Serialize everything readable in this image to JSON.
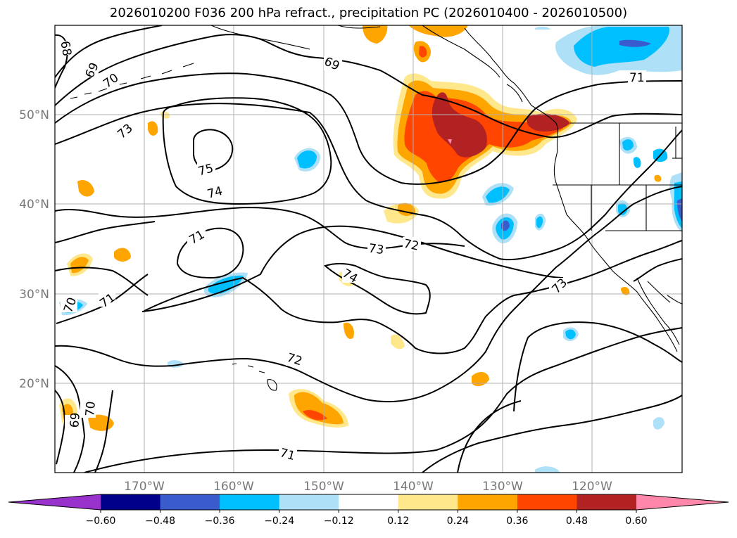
{
  "title": "2026010200 F036 200 hPa refract., precipitation PC (2026010400 - 2026010500)",
  "lat_labels": [
    "50°N",
    "40°N",
    "30°N",
    "20°N"
  ],
  "lon_labels": [
    "170°W",
    "160°W",
    "150°W",
    "140°W",
    "130°W",
    "120°W"
  ],
  "contour_labels": [
    "68",
    "69",
    "70",
    "73",
    "75",
    "74",
    "71",
    "70",
    "71",
    "73",
    "72",
    "74",
    "73",
    "72",
    "71",
    "69",
    "70",
    "69",
    "71"
  ],
  "colorbar": {
    "ticks": [
      "−0.60",
      "−0.48",
      "−0.36",
      "−0.24",
      "−0.12",
      "0.12",
      "0.24",
      "0.36",
      "0.48",
      "0.60"
    ],
    "colors": [
      "#9932cc",
      "#00008b",
      "#3a5bcc",
      "#00bfff",
      "#aee0f8",
      "#ffffff",
      "#ffe88c",
      "#ffa500",
      "#ff4500",
      "#b22222",
      "#ff88aa"
    ]
  }
}
